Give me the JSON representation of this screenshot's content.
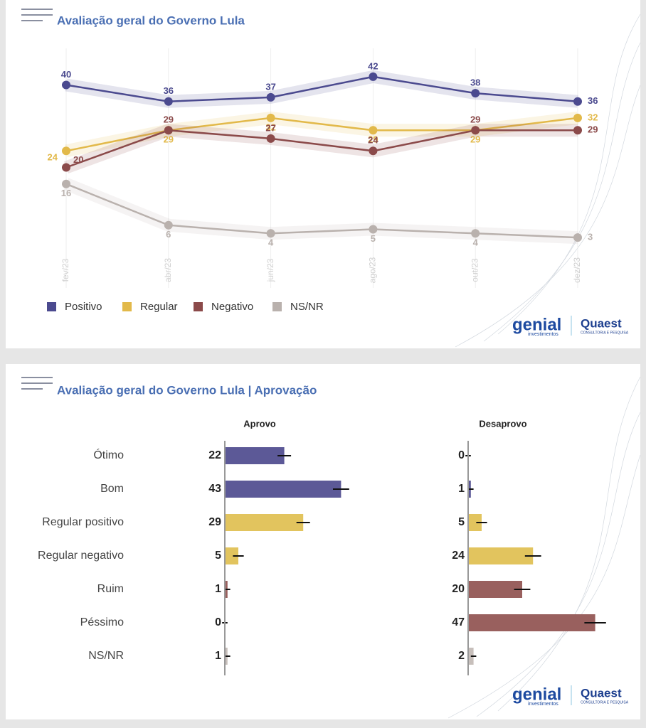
{
  "branding": {
    "genial": "genial",
    "genial_sub": "investimentos",
    "quaest": "Quaest",
    "quaest_sub": "CONSULTORIA E PESQUISA"
  },
  "chart_data": [
    {
      "type": "line",
      "title": "Avaliação geral do Governo Lula",
      "categories": [
        "fev/23",
        "abr/23",
        "jun/23",
        "ago/23",
        "out/23",
        "dez/23"
      ],
      "ylim": [
        0,
        45
      ],
      "series": [
        {
          "name": "Positivo",
          "color": "#4b4a8f",
          "values": [
            40,
            36,
            37,
            42,
            38,
            36
          ]
        },
        {
          "name": "Regular",
          "color": "#e2b94a",
          "values": [
            24,
            29,
            32,
            29,
            29,
            32
          ]
        },
        {
          "name": "Negativo",
          "color": "#8b4a4a",
          "values": [
            20,
            29,
            27,
            24,
            29,
            29
          ]
        },
        {
          "name": "NS/NR",
          "color": "#b9b1ad",
          "values": [
            16,
            6,
            4,
            5,
            4,
            3
          ]
        }
      ]
    },
    {
      "type": "bar",
      "title": "Avaliação geral do Governo Lula | Aprovação",
      "categories": [
        "Ótimo",
        "Bom",
        "Regular positivo",
        "Regular negativo",
        "Ruim",
        "Péssimo",
        "NS/NR"
      ],
      "colors": [
        "#5c5997",
        "#5c5997",
        "#e2c45e",
        "#e2c45e",
        "#99605e",
        "#99605e",
        "#c7bfbb"
      ],
      "xlim": [
        0,
        50
      ],
      "series": [
        {
          "name": "Aprovo",
          "values": [
            22,
            43,
            29,
            5,
            1,
            0,
            1
          ],
          "errors": [
            2.5,
            3,
            2.5,
            2,
            1,
            1,
            1
          ]
        },
        {
          "name": "Desaprovo",
          "values": [
            0,
            1,
            5,
            24,
            20,
            47,
            2
          ],
          "errors": [
            1,
            1,
            2,
            3,
            3,
            4,
            1
          ]
        }
      ]
    }
  ]
}
